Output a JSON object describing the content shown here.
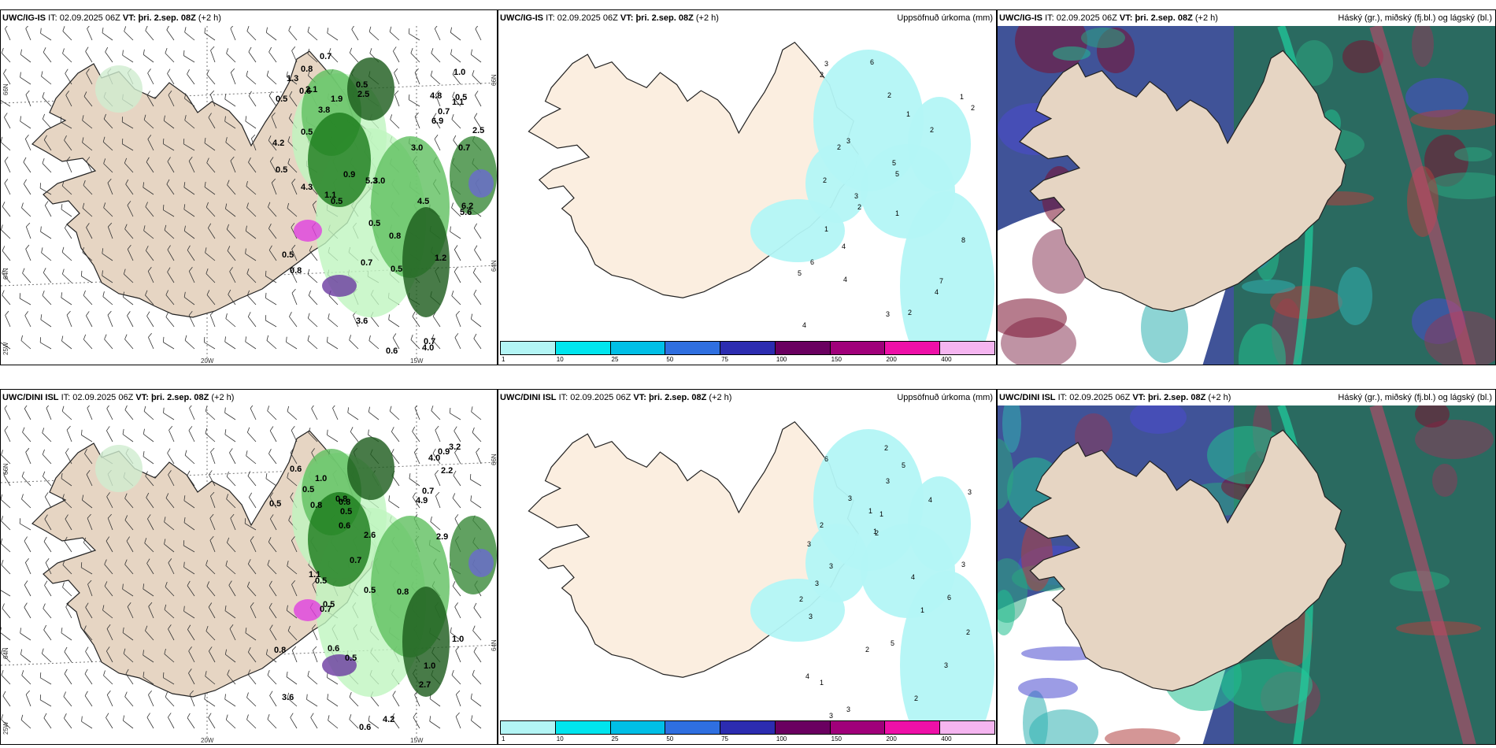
{
  "panels": [
    {
      "id": "p1",
      "model": "UWC/IG-IS",
      "it_label": "IT:",
      "it": "02.09.2025 06Z",
      "vt_label": "VT:",
      "vt": "þri. 2.sep. 08Z",
      "lead": "(+2 h)",
      "title_right": "",
      "axes": {
        "lat_top": "66N",
        "lat_bottom": "64N",
        "lat_top_r": "66N",
        "lat_bottom_r": "64N",
        "lon_left": "25W",
        "lon_mid": "20W",
        "lon_right": "15W"
      }
    },
    {
      "id": "p2",
      "model": "UWC/IG-IS",
      "it_label": "IT:",
      "it": "02.09.2025 06Z",
      "vt_label": "VT:",
      "vt": "þri. 2.sep. 08Z",
      "lead": "(+2 h)",
      "title_right": "Uppsöfnuð úrkoma (mm)"
    },
    {
      "id": "p3",
      "model": "UWC/IG-IS",
      "it_label": "IT:",
      "it": "02.09.2025 06Z",
      "vt_label": "VT:",
      "vt": "þri. 2.sep. 08Z",
      "lead": "(+2 h)",
      "title_right": "Háský (gr.), miðský (fj.bl.) og lágský (bl.)"
    },
    {
      "id": "p4",
      "model": "UWC/DINI ISL",
      "it_label": "IT:",
      "it": "02.09.2025 06Z",
      "vt_label": "VT:",
      "vt": "þri. 2.sep. 08Z",
      "lead": "(+2 h)",
      "title_right": "",
      "axes": {
        "lat_top": "66N",
        "lat_bottom": "64N",
        "lat_top_r": "66N",
        "lat_bottom_r": "64N",
        "lon_left": "25W",
        "lon_mid": "20W",
        "lon_right": "15W"
      }
    },
    {
      "id": "p5",
      "model": "UWC/DINI ISL",
      "it_label": "IT:",
      "it": "02.09.2025 06Z",
      "vt_label": "VT:",
      "vt": "þri. 2.sep. 08Z",
      "lead": "(+2 h)",
      "title_right": "Uppsöfnuð úrkoma (mm)"
    },
    {
      "id": "p6",
      "model": "UWC/DINI ISL",
      "it_label": "IT:",
      "it": "02.09.2025 06Z",
      "vt_label": "VT:",
      "vt": "þri. 2.sep. 08Z",
      "lead": "(+2 h)",
      "title_right": "Háský (gr.), miðský (fj.bl.) og lágský (bl.)"
    }
  ],
  "colorbar": {
    "ticks": [
      "1",
      "10",
      "25",
      "50",
      "75",
      "100",
      "150",
      "200",
      "400"
    ],
    "colors": [
      "#b3f5f5",
      "#00e5ee",
      "#00bfe6",
      "#2f6fe0",
      "#2c2cb0",
      "#6a0060",
      "#a0007a",
      "#ee10a8",
      "#f5b5f0"
    ]
  },
  "precip_labels_top": [
    "0.7",
    "4.0",
    "0.5",
    "3.8",
    "0.7",
    "0.5",
    "4.2",
    "0.5",
    "0.8",
    "0.8",
    "4.3",
    "0.5",
    "0.6",
    "1.3",
    "0.5",
    "1.1",
    "6.2",
    "1.9",
    "3.0",
    "6.9",
    "0.5",
    "1.0",
    "4.5",
    "5.6",
    "0.7",
    "1.2",
    "0.7",
    "0.6",
    "1.1",
    "2.1",
    "3.0",
    "0.7",
    "0.5",
    "5.3",
    "0.5",
    "3.6",
    "4.8",
    "2.5",
    "2.5",
    "0.5",
    "0.8",
    "0.9"
  ],
  "precip_labels_bottom": [
    "0.6",
    "0.8",
    "0.5",
    "1.0",
    "0.5",
    "0.8",
    "0.5",
    "1.0",
    "0.8",
    "0.5",
    "0.6",
    "3.2",
    "4.0",
    "0.5",
    "1.1",
    "0.7",
    "1.0",
    "2.9",
    "4.9",
    "2.6",
    "0.9",
    "0.5",
    "0.8",
    "3.6",
    "2.7",
    "4.2",
    "2.2",
    "0.8",
    "0.6",
    "0.5",
    "0.7",
    "0.6",
    "0.7"
  ],
  "accum_labels_top": [
    "7",
    "4",
    "1",
    "3",
    "4",
    "2",
    "3",
    "2",
    "2",
    "1",
    "2",
    "1",
    "2",
    "3",
    "4",
    "5",
    "5",
    "4",
    "3",
    "2",
    "2",
    "1",
    "8",
    "6",
    "6",
    "5",
    "2"
  ],
  "accum_labels_bottom": [
    "3",
    "4",
    "1",
    "3",
    "2",
    "3",
    "2",
    "3",
    "4",
    "1",
    "2",
    "1",
    "3",
    "2",
    "5",
    "5",
    "3",
    "4",
    "3",
    "2",
    "3",
    "1",
    "2",
    "6",
    "3",
    "3",
    "3",
    "6",
    "1",
    "2"
  ]
}
